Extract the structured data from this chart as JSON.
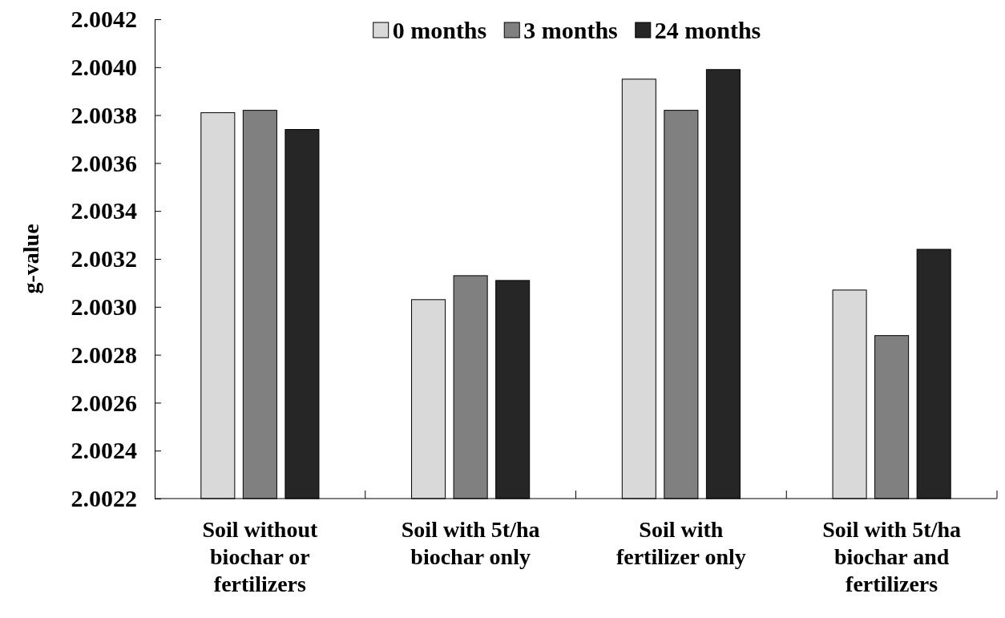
{
  "chart_data": {
    "type": "bar",
    "ylabel": "g-value",
    "categories": [
      "Soil without biochar or fertilizers",
      "Soil with 5t/ha biochar only",
      "Soil with fertilizer only",
      "Soil with 5t/ha biochar and fertilizers"
    ],
    "series": [
      {
        "name": "0 months",
        "color": "#d9d9d9",
        "values": [
          2.00381,
          2.00303,
          2.00395,
          2.00307
        ]
      },
      {
        "name": "3 months",
        "color": "#808080",
        "values": [
          2.00382,
          2.00313,
          2.00382,
          2.00288
        ]
      },
      {
        "name": "24 months",
        "color": "#262626",
        "values": [
          2.00374,
          2.00311,
          2.00399,
          2.00324
        ]
      }
    ],
    "ylim": [
      2.0022,
      2.0042
    ],
    "yticks": [
      {
        "value": 2.0022,
        "label": "2.0022"
      },
      {
        "value": 2.0024,
        "label": "2.0024"
      },
      {
        "value": 2.0026,
        "label": "2.0026"
      },
      {
        "value": 2.0028,
        "label": "2.0028"
      },
      {
        "value": 2.003,
        "label": "2.0030"
      },
      {
        "value": 2.0032,
        "label": "2.0032"
      },
      {
        "value": 2.0034,
        "label": "2.0034"
      },
      {
        "value": 2.0036,
        "label": "2.0036"
      },
      {
        "value": 2.0038,
        "label": "2.0038"
      },
      {
        "value": 2.004,
        "label": "2.0040"
      },
      {
        "value": 2.0042,
        "label": "2.0042"
      }
    ],
    "grid": false,
    "legend": "top"
  }
}
